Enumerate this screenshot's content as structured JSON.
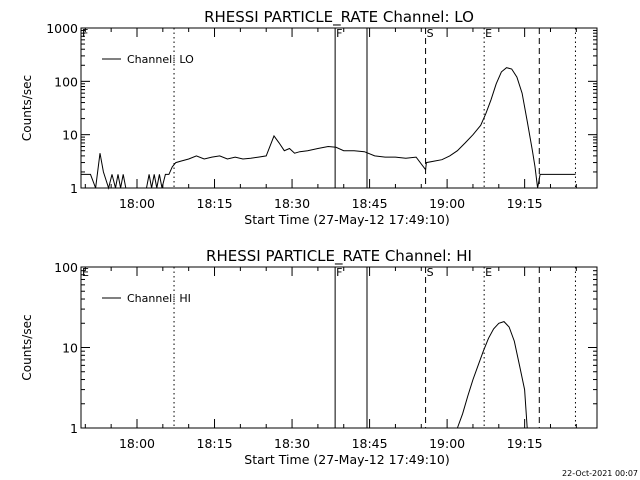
{
  "footer_timestamp": "22-Oct-2021 00:07",
  "chart_data": [
    {
      "type": "line",
      "title": "RHESSI PARTICLE_RATE Channel: LO",
      "xlabel": "Start Time (27-May-12 17:49:10)",
      "ylabel": "Counts/sec",
      "yscale": "log",
      "ylim": [
        1,
        1000
      ],
      "xlim": [
        "17:49:10",
        "19:29:00"
      ],
      "y_tick_labels": [
        "1",
        "10",
        "100",
        "1000"
      ],
      "x_tick_labels": [
        "18:00",
        "18:15",
        "18:30",
        "18:45",
        "19:00",
        "19:15"
      ],
      "legend": {
        "entries": [
          "Channel: LO"
        ],
        "position": "top-left"
      },
      "markers": [
        {
          "time": "17:49:10",
          "style": "solid",
          "label": "F"
        },
        {
          "time": "18:07:10",
          "style": "dotted",
          "label": ""
        },
        {
          "time": "18:38:20",
          "style": "solid",
          "label": "F"
        },
        {
          "time": "18:44:30",
          "style": "solid",
          "label": ""
        },
        {
          "time": "18:55:50",
          "style": "dashed",
          "label": "S"
        },
        {
          "time": "19:07:10",
          "style": "dotted",
          "label": "E"
        },
        {
          "time": "19:17:50",
          "style": "dashed",
          "label": ""
        },
        {
          "time": "19:24:50",
          "style": "dotted",
          "label": ""
        }
      ],
      "series": [
        {
          "x": [
            "17:49:10",
            "17:51:00",
            "17:52:00",
            "17:52:50",
            "17:53:30",
            "17:54:30",
            "17:55:10",
            "17:55:50",
            "17:56:20",
            "17:56:50",
            "17:57:20",
            "17:57:50",
            "17:58:20",
            "17:59:10",
            "18:00:20",
            "18:01:50",
            "18:02:20",
            "18:02:50",
            "18:03:20",
            "18:03:50",
            "18:04:20",
            "18:04:50",
            "18:05:30",
            "18:06:10",
            "18:06:50",
            "18:07:30",
            "18:08:30",
            "18:10:00",
            "18:11:30",
            "18:13:00",
            "18:14:30",
            "18:16:00",
            "18:17:30",
            "18:19:00",
            "18:20:30",
            "18:22:00",
            "18:23:30",
            "18:25:00",
            "18:26:30",
            "18:27:30",
            "18:28:30",
            "18:29:30",
            "18:30:30",
            "18:31:30",
            "18:33:00",
            "18:35:00",
            "18:37:00",
            "18:38:30",
            "18:40:00",
            "18:42:00",
            "18:44:00",
            "18:46:00",
            "18:48:00",
            "18:50:00",
            "18:52:00",
            "18:54:00",
            "18:55:50",
            "18:56:00",
            "18:57:30",
            "18:59:00",
            "19:00:30",
            "19:02:00",
            "19:03:30",
            "19:05:00",
            "19:06:30",
            "19:07:30",
            "19:08:30",
            "19:09:30",
            "19:10:30",
            "19:11:30",
            "19:12:30",
            "19:13:30",
            "19:14:30",
            "19:15:30",
            "19:16:30",
            "19:17:00",
            "19:17:30",
            "19:18:00",
            "19:18:30",
            "19:19:00",
            "19:24:50"
          ],
          "y": [
            1.8,
            1.8,
            1,
            4.5,
            2,
            1,
            1.8,
            1,
            1.8,
            1,
            1.8,
            1,
            1,
            1,
            1,
            1,
            1.8,
            1,
            1.8,
            1,
            1.8,
            1,
            1.8,
            1.8,
            2.5,
            3,
            3.2,
            3.5,
            4,
            3.5,
            3.8,
            4,
            3.5,
            3.8,
            3.5,
            3.6,
            3.8,
            4,
            9.5,
            7,
            5,
            5.5,
            4.5,
            4.8,
            5,
            5.5,
            6,
            5.8,
            5,
            5,
            4.8,
            4,
            3.8,
            3.8,
            3.6,
            3.8,
            2.2,
            3,
            3.2,
            3.4,
            4,
            5,
            7,
            10,
            15,
            25,
            45,
            90,
            150,
            180,
            170,
            120,
            60,
            18,
            5,
            2.5,
            1,
            1.8,
            1.8,
            1.8,
            1.8
          ]
        }
      ]
    },
    {
      "type": "line",
      "title": "RHESSI PARTICLE_RATE Channel: HI",
      "xlabel": "Start Time (27-May-12 17:49:10)",
      "ylabel": "Counts/sec",
      "yscale": "log",
      "ylim": [
        1,
        100
      ],
      "xlim": [
        "17:49:10",
        "19:29:00"
      ],
      "y_tick_labels": [
        "1",
        "10",
        "100"
      ],
      "x_tick_labels": [
        "18:00",
        "18:15",
        "18:30",
        "18:45",
        "19:00",
        "19:15"
      ],
      "legend": {
        "entries": [
          "Channel: HI"
        ],
        "position": "top-left"
      },
      "markers": [
        {
          "time": "17:49:10",
          "style": "solid",
          "label": "E"
        },
        {
          "time": "18:07:10",
          "style": "dotted",
          "label": ""
        },
        {
          "time": "18:38:20",
          "style": "solid",
          "label": "F"
        },
        {
          "time": "18:44:30",
          "style": "solid",
          "label": ""
        },
        {
          "time": "18:55:50",
          "style": "dashed",
          "label": "S"
        },
        {
          "time": "19:07:10",
          "style": "dotted",
          "label": "E"
        },
        {
          "time": "19:17:50",
          "style": "dashed",
          "label": ""
        },
        {
          "time": "19:24:50",
          "style": "dotted",
          "label": ""
        }
      ],
      "series": [
        {
          "x": [
            "19:02:00",
            "19:03:00",
            "19:04:00",
            "19:05:00",
            "19:06:00",
            "19:07:00",
            "19:08:00",
            "19:09:00",
            "19:10:00",
            "19:11:00",
            "19:12:00",
            "19:13:00",
            "19:14:00",
            "19:15:00",
            "19:15:30"
          ],
          "y": [
            1,
            1.5,
            2.5,
            4,
            6,
            9,
            13,
            17,
            20,
            21,
            18,
            12,
            6,
            3,
            1
          ]
        }
      ]
    }
  ]
}
